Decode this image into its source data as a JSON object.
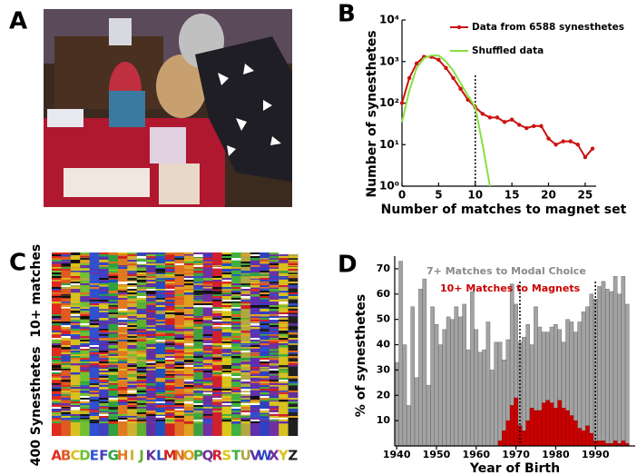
{
  "chart_data": [
    {
      "type": "image",
      "label": "A"
    },
    {
      "type": "line",
      "label": "B",
      "xlabel": "Number of matches to magnet set",
      "ylabel": "Number of synesthetes",
      "x": [
        0,
        1,
        2,
        3,
        4,
        5,
        6,
        7,
        8,
        9,
        10,
        11,
        12,
        13,
        14,
        15,
        16,
        17,
        18,
        19,
        20,
        21,
        22,
        23,
        24,
        25,
        26
      ],
      "series": [
        {
          "name": "Data from 6588 synesthetes",
          "color": "#cc1111",
          "x": [
            0,
            1,
            2,
            3,
            4,
            5,
            6,
            7,
            8,
            9,
            10,
            11,
            12,
            13,
            14,
            15,
            16,
            17,
            18,
            19,
            20,
            21,
            22,
            23,
            24,
            25,
            26
          ],
          "values": [
            100,
            400,
            900,
            1300,
            1300,
            1100,
            700,
            400,
            220,
            120,
            80,
            55,
            45,
            45,
            35,
            40,
            30,
            25,
            28,
            28,
            14,
            10,
            12,
            12,
            10,
            5,
            8
          ]
        },
        {
          "name": "Shuffled data",
          "color": "#88e040",
          "x": [
            0,
            1,
            2,
            3,
            4,
            5,
            6,
            7,
            8,
            9,
            10,
            11,
            12
          ],
          "values": [
            35,
            200,
            700,
            1200,
            1400,
            1400,
            1000,
            600,
            300,
            150,
            80,
            10,
            1
          ]
        }
      ],
      "log_y": true,
      "threshold": 10,
      "xlim": [
        0,
        26.5
      ],
      "xticks": [
        0,
        5,
        10,
        15,
        20,
        25
      ],
      "ylim": [
        1,
        10000
      ],
      "yticks": [
        {
          "value": 1,
          "label": "10⁰"
        },
        {
          "value": 10,
          "label": "10¹"
        },
        {
          "value": 100,
          "label": "10²"
        },
        {
          "value": 1000,
          "label": "10³"
        },
        {
          "value": 10000,
          "label": "10⁴"
        }
      ],
      "legend": "upper right"
    },
    {
      "type": "heatmap",
      "label": "C",
      "ylabel": "400 Synesthetes  10+ matches",
      "letters": [
        "A",
        "B",
        "C",
        "D",
        "E",
        "F",
        "G",
        "H",
        "I",
        "J",
        "K",
        "L",
        "M",
        "N",
        "O",
        "P",
        "Q",
        "R",
        "S",
        "T",
        "U",
        "V",
        "W",
        "X",
        "Y",
        "Z"
      ],
      "letter_colors": [
        "#e02a1e",
        "#e05a20",
        "#d8c020",
        "#70c030",
        "#3050d0",
        "#4040c0",
        "#30a040",
        "#e07a20",
        "#d0b030",
        "#60b030",
        "#6030a0",
        "#2050c0",
        "#d02020",
        "#e07020",
        "#e0a020",
        "#40a040",
        "#7030a0",
        "#d02030",
        "#d8c818",
        "#40b040",
        "#b0a840",
        "#6030b0",
        "#3040c0",
        "#7030a0",
        "#d8c020",
        "#202020"
      ]
    },
    {
      "type": "bar",
      "label": "D",
      "xlabel": "Year of Birth",
      "ylabel": "% of synesthetes",
      "x": [
        1940,
        1941,
        1942,
        1943,
        1944,
        1945,
        1946,
        1947,
        1948,
        1949,
        1950,
        1951,
        1952,
        1953,
        1954,
        1955,
        1956,
        1957,
        1958,
        1959,
        1960,
        1961,
        1962,
        1963,
        1964,
        1965,
        1966,
        1967,
        1968,
        1969,
        1970,
        1971,
        1972,
        1973,
        1974,
        1975,
        1976,
        1977,
        1978,
        1979,
        1980,
        1981,
        1982,
        1983,
        1984,
        1985,
        1986,
        1987,
        1988,
        1989,
        1990,
        1991,
        1992,
        1993,
        1994,
        1995,
        1996,
        1997,
        1998
      ],
      "series": [
        {
          "name": "7+ Matches to Modal Choice",
          "color": "#a3a3a3",
          "values": [
            33,
            73,
            40,
            16,
            55,
            27,
            62,
            66,
            24,
            55,
            48,
            40,
            46,
            51,
            50,
            55,
            51,
            56,
            38,
            61,
            46,
            37,
            38,
            49,
            30,
            41,
            41,
            34,
            42,
            64,
            56,
            41,
            43,
            48,
            40,
            55,
            47,
            45,
            45,
            47,
            48,
            46,
            41,
            50,
            49,
            45,
            49,
            53,
            55,
            60,
            58,
            63,
            65,
            62,
            61,
            67,
            60,
            67,
            56
          ]
        },
        {
          "name": "10+ Matches to Magnets",
          "color": "#cc0000",
          "values": [
            0,
            0,
            0,
            0,
            0,
            0,
            0,
            0,
            0,
            0,
            0,
            0,
            0,
            0,
            0,
            0,
            0,
            0,
            0,
            0,
            0,
            0,
            0,
            0,
            0,
            0,
            2,
            6,
            10,
            16,
            19,
            8,
            6,
            10,
            15,
            14,
            14,
            17,
            18,
            17,
            15,
            18,
            15,
            14,
            12,
            10,
            7,
            6,
            8,
            5,
            2,
            2,
            2,
            1,
            1,
            2,
            1,
            2,
            1
          ]
        }
      ],
      "markers": [
        1971,
        1990
      ],
      "xlim": [
        1939.5,
        2000
      ],
      "xticks": [
        1940,
        1950,
        1960,
        1970,
        1980,
        1990
      ],
      "ylim": [
        0,
        75
      ],
      "yticks": [
        10,
        20,
        30,
        40,
        50,
        60,
        70
      ],
      "legend": "upper left"
    }
  ]
}
